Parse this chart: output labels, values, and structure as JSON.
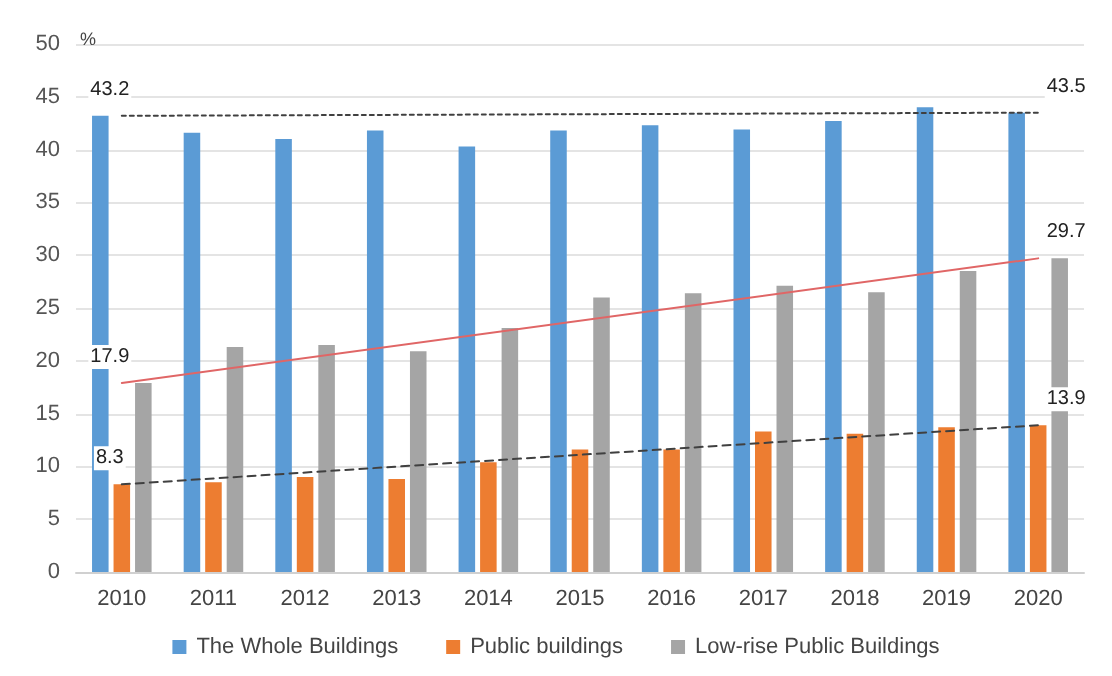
{
  "chart_data": {
    "type": "bar",
    "ylabel": "%",
    "categories": [
      "2010",
      "2011",
      "2012",
      "2013",
      "2014",
      "2015",
      "2016",
      "2017",
      "2018",
      "2019",
      "2020"
    ],
    "series": [
      {
        "name": "The Whole Buildings",
        "color": "#5b9bd5",
        "values": [
          43.2,
          41.6,
          41.0,
          41.8,
          40.3,
          41.8,
          42.3,
          41.9,
          42.7,
          44.0,
          43.5
        ]
      },
      {
        "name": "Public buildings",
        "color": "#ed7d31",
        "values": [
          8.3,
          8.5,
          9.0,
          8.8,
          10.4,
          11.6,
          11.6,
          13.3,
          13.1,
          13.7,
          13.9
        ]
      },
      {
        "name": "Low-rise Public Buildings",
        "color": "#a5a5a5",
        "values": [
          17.9,
          21.3,
          21.5,
          20.9,
          23.1,
          26.0,
          26.4,
          27.1,
          26.5,
          28.5,
          29.7
        ]
      },
      {
        "type": "line",
        "color": "#404040",
        "line_style": "dotted",
        "values": [
          43.2,
          null,
          null,
          null,
          null,
          null,
          null,
          null,
          null,
          null,
          43.5
        ],
        "value_labels": [
          "43.2",
          null,
          null,
          null,
          null,
          null,
          null,
          null,
          null,
          null,
          "43.5"
        ]
      },
      {
        "type": "line",
        "color": "#e06666",
        "line_style": "solid",
        "values": [
          17.9,
          null,
          null,
          null,
          null,
          null,
          null,
          null,
          null,
          null,
          29.7
        ],
        "value_labels": [
          "17.9",
          null,
          null,
          null,
          null,
          null,
          null,
          null,
          null,
          null,
          "29.7"
        ]
      },
      {
        "type": "line",
        "color": "#404040",
        "line_style": "dashed",
        "values": [
          8.3,
          null,
          null,
          null,
          null,
          null,
          null,
          null,
          null,
          null,
          13.9
        ],
        "value_labels": [
          "8.3",
          null,
          null,
          null,
          null,
          null,
          null,
          null,
          null,
          null,
          "13.9"
        ]
      }
    ],
    "ylim": [
      0,
      50
    ],
    "yticks": [
      0,
      5,
      10,
      15,
      20,
      25,
      30,
      35,
      40,
      45,
      50
    ],
    "grid": "y",
    "legend": "bottom",
    "marker": "none"
  }
}
